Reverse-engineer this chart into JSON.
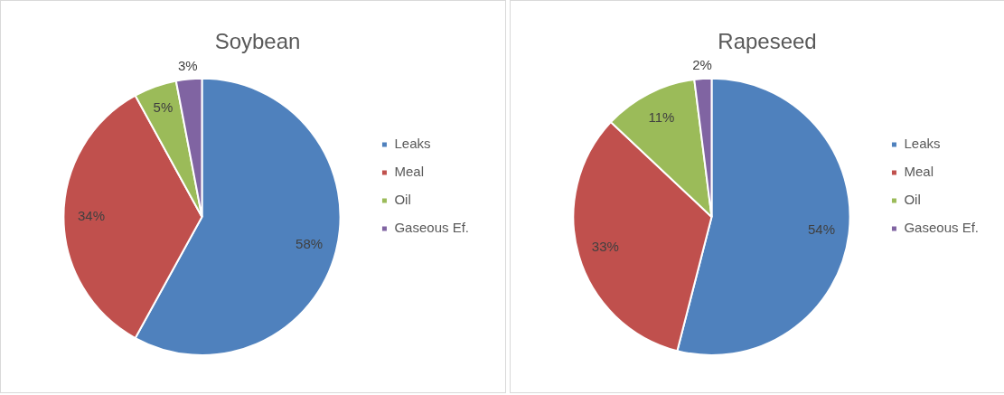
{
  "chart_data": [
    {
      "type": "pie",
      "title": "Soybean",
      "categories": [
        "Leaks",
        "Meal",
        "Oil",
        "Gaseous Ef."
      ],
      "values": [
        58,
        34,
        5,
        3
      ],
      "value_labels": [
        "58%",
        "34%",
        "5%",
        "3%"
      ],
      "colors": [
        "#4f81bd",
        "#c0504d",
        "#9bbb59",
        "#8064a2"
      ],
      "legend": "right"
    },
    {
      "type": "pie",
      "title": "Rapeseed",
      "categories": [
        "Leaks",
        "Meal",
        "Oil",
        "Gaseous Ef."
      ],
      "values": [
        54,
        33,
        11,
        2
      ],
      "value_labels": [
        "54%",
        "33%",
        "11%",
        "2%"
      ],
      "colors": [
        "#4f81bd",
        "#c0504d",
        "#9bbb59",
        "#8064a2"
      ],
      "legend": "right"
    }
  ]
}
